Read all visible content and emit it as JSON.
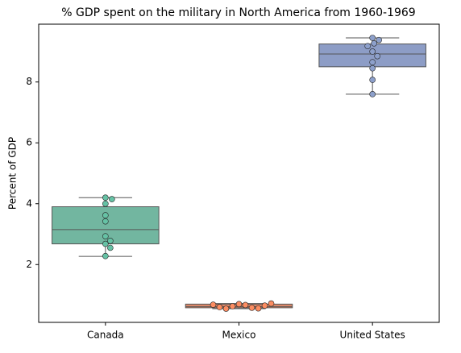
{
  "chart_data": {
    "type": "box",
    "title": "% GDP spent on the military in North America from 1960-1969",
    "ylabel": "Percent of GDP",
    "categories": [
      "Canada",
      "Mexico",
      "United States"
    ],
    "box_colors": [
      "#72b6a0",
      "#e48b6b",
      "#8d9dc6"
    ],
    "point_colors": [
      "#66c2a5",
      "#fc8d62",
      "#8da0cb"
    ],
    "boxes": [
      {
        "whislo": 2.27,
        "q1": 2.68,
        "med": 3.15,
        "q3": 3.9,
        "whishi": 4.2,
        "points": [
          4.2,
          4.15,
          4.0,
          3.62,
          3.42,
          2.93,
          2.78,
          2.68,
          2.55,
          2.28
        ]
      },
      {
        "whislo": 0.55,
        "q1": 0.58,
        "med": 0.62,
        "q3": 0.7,
        "whishi": 0.72,
        "points": [
          0.7,
          0.67,
          0.63,
          0.58,
          0.55,
          0.56,
          0.6,
          0.65,
          0.68,
          0.72
        ]
      },
      {
        "whislo": 7.6,
        "q1": 8.5,
        "med": 8.92,
        "q3": 9.25,
        "whishi": 9.45,
        "points": [
          9.45,
          9.38,
          9.27,
          9.18,
          9.0,
          8.85,
          8.65,
          8.45,
          8.07,
          7.6
        ]
      }
    ],
    "ylim": [
      0.1,
      9.9
    ],
    "yticks": [
      2,
      4,
      6,
      8
    ]
  }
}
